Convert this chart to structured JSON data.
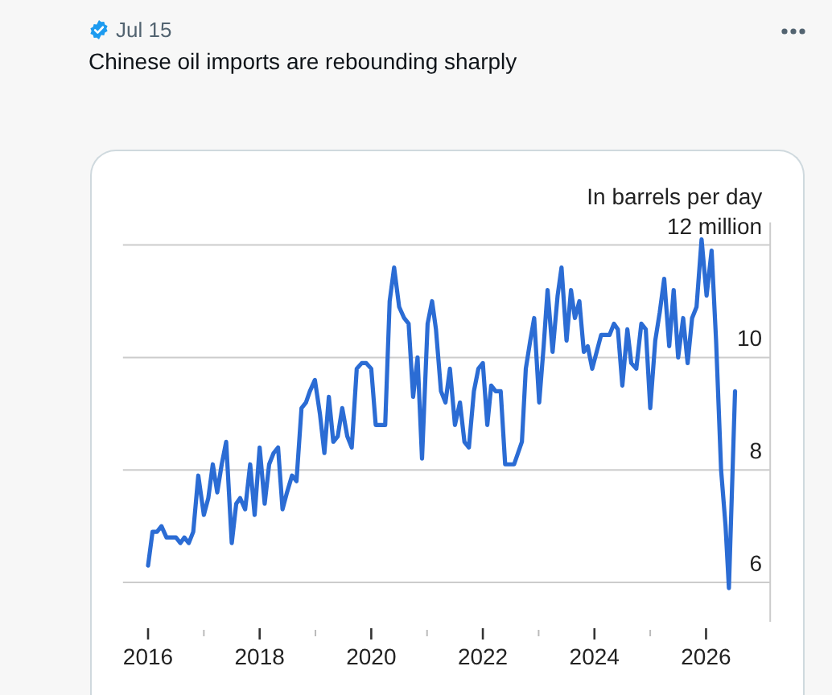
{
  "chart_data": {
    "type": "line",
    "title": "Chinese oil imports are rebounding sharply",
    "ylabel": "In barrels per day",
    "annotations": [
      "Jul 15"
    ],
    "x": [
      2016.0,
      2016.08,
      2016.16,
      2016.24,
      2016.33,
      2016.41,
      2016.5,
      2016.58,
      2016.65,
      2016.73,
      2016.81,
      2016.9,
      2017.0,
      2017.08,
      2017.16,
      2017.24,
      2017.32,
      2017.4,
      2017.5,
      2017.58,
      2017.65,
      2017.74,
      2017.83,
      2017.91,
      2018.0,
      2018.09,
      2018.17,
      2018.25,
      2018.33,
      2018.41,
      2018.49,
      2018.58,
      2018.66,
      2018.75,
      2018.83,
      2018.9,
      2018.99,
      2019.08,
      2019.16,
      2019.24,
      2019.32,
      2019.4,
      2019.48,
      2019.57,
      2019.65,
      2019.74,
      2019.83,
      2019.91,
      2020.0,
      2020.08,
      2020.16,
      2020.25,
      2020.33,
      2020.41,
      2020.5,
      2020.59,
      2020.67,
      2020.75,
      2020.83,
      2020.91,
      2021.01,
      2021.09,
      2021.16,
      2021.25,
      2021.33,
      2021.41,
      2021.5,
      2021.59,
      2021.67,
      2021.75,
      2021.84,
      2021.92,
      2022.0,
      2022.08,
      2022.15,
      2022.23,
      2022.32,
      2022.4,
      2022.48,
      2022.56,
      2022.63,
      2022.7,
      2022.77,
      2022.85,
      2022.92,
      2023.01,
      2023.09,
      2023.16,
      2023.25,
      2023.34,
      2023.41,
      2023.5,
      2023.58,
      2023.65,
      2023.73,
      2023.81,
      2023.88,
      2023.96,
      2024.04,
      2024.12,
      2024.19,
      2024.27,
      2024.35,
      2024.42,
      2024.5,
      2024.59,
      2024.66,
      2024.75,
      2024.84,
      2024.92,
      2025.0,
      2025.09,
      2025.17,
      2025.25,
      2025.34,
      2025.42,
      2025.5,
      2025.59,
      2025.67,
      2025.75,
      2025.83,
      2025.92,
      2026.01,
      2026.1,
      2026.18,
      2026.27,
      2026.35,
      2026.41,
      2026.52
    ],
    "series": [
      {
        "color": "#2b6cd4",
        "values": [
          6.3,
          6.9,
          6.9,
          7.0,
          6.8,
          6.8,
          6.8,
          6.7,
          6.8,
          6.7,
          6.9,
          7.9,
          7.2,
          7.5,
          8.1,
          7.6,
          8.1,
          8.5,
          6.7,
          7.4,
          7.5,
          7.3,
          8.1,
          7.2,
          8.4,
          7.4,
          8.1,
          8.3,
          8.4,
          7.3,
          7.6,
          7.9,
          7.8,
          9.1,
          9.2,
          9.4,
          9.6,
          9.0,
          8.3,
          9.3,
          8.5,
          8.6,
          9.1,
          8.6,
          8.4,
          9.8,
          9.9,
          9.9,
          9.8,
          8.8,
          8.8,
          8.8,
          11.0,
          11.6,
          10.9,
          10.7,
          10.6,
          9.3,
          10.0,
          8.2,
          10.6,
          11.0,
          10.5,
          9.4,
          9.2,
          9.8,
          8.8,
          9.2,
          8.5,
          8.4,
          9.4,
          9.8,
          9.9,
          8.8,
          9.5,
          9.4,
          9.4,
          8.1,
          8.1,
          8.1,
          8.3,
          8.5,
          9.8,
          10.3,
          10.7,
          9.2,
          10.2,
          11.2,
          10.1,
          11.1,
          11.6,
          10.3,
          11.2,
          10.7,
          11.0,
          10.1,
          10.2,
          9.8,
          10.1,
          10.4,
          10.4,
          10.4,
          10.6,
          10.5,
          9.5,
          10.5,
          9.9,
          9.8,
          10.6,
          10.5,
          9.1,
          10.3,
          10.8,
          11.4,
          10.2,
          11.2,
          10.0,
          10.7,
          9.9,
          10.7,
          10.9,
          12.1,
          11.1,
          11.9,
          10.3,
          8.0,
          7.0,
          5.9,
          9.4
        ]
      }
    ],
    "xlim": [
      2015.55,
      2027.15
    ],
    "xticks": [
      2016,
      {
        "value": 2017,
        "label": null
      },
      2018,
      {
        "value": 2019,
        "label": null
      },
      2020,
      {
        "value": 2021,
        "label": null
      },
      2022,
      {
        "value": 2023,
        "label": null
      },
      2024,
      {
        "value": 2025,
        "label": null
      },
      2026
    ],
    "ylim": [
      5.3,
      12.4
    ],
    "yticks": [
      6,
      8,
      10,
      {
        "value": 12,
        "label": "12 million"
      }
    ],
    "grid": "y"
  }
}
